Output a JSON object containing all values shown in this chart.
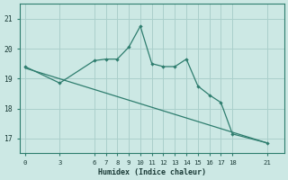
{
  "xlabel": "Humidex (Indice chaleur)",
  "x_ticks": [
    0,
    3,
    6,
    7,
    8,
    9,
    10,
    11,
    12,
    13,
    14,
    15,
    16,
    17,
    18,
    21
  ],
  "line1_x": [
    0,
    3,
    6,
    7,
    8,
    9,
    10,
    11,
    12,
    13,
    14,
    15,
    16,
    17,
    18,
    21
  ],
  "line1_y": [
    19.4,
    18.85,
    19.6,
    19.65,
    19.65,
    20.05,
    20.75,
    19.5,
    19.4,
    19.4,
    19.65,
    18.75,
    18.45,
    18.2,
    17.15,
    16.85
  ],
  "line2_x": [
    0,
    21
  ],
  "line2_y": [
    19.35,
    16.85
  ],
  "line_color": "#2e7d6e",
  "bg_color": "#cce8e4",
  "grid_color": "#aacfcb",
  "ylim": [
    16.5,
    21.5
  ],
  "yticks": [
    17,
    18,
    19,
    20,
    21
  ],
  "xlim": [
    -0.5,
    22.5
  ]
}
